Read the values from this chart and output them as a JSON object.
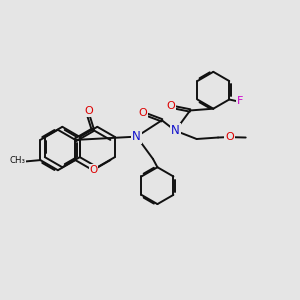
{
  "bg": "#e5e5e5",
  "bc": "#111111",
  "Oc": "#dd0000",
  "Nc": "#1111cc",
  "Fc": "#cc00cc",
  "lw": 1.4,
  "figsize": [
    3.0,
    3.0
  ],
  "dpi": 100,
  "xlim": [
    0,
    10
  ],
  "ylim": [
    0,
    10
  ]
}
